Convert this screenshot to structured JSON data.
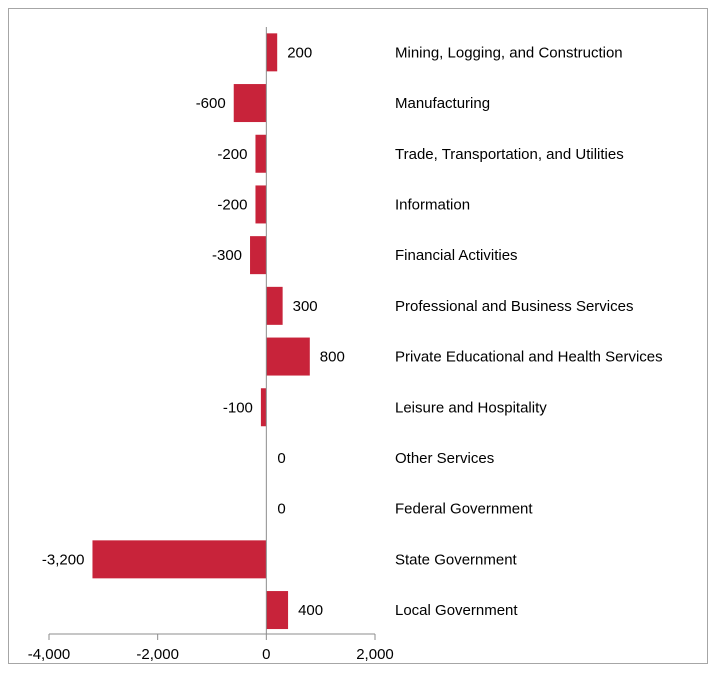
{
  "chart_data": {
    "type": "bar",
    "orientation": "horizontal",
    "categories": [
      "Mining, Logging, and Construction",
      "Manufacturing",
      "Trade, Transportation, and Utilities",
      "Information",
      "Financial Activities",
      "Professional and Business Services",
      "Private Educational and Health Services",
      "Leisure and Hospitality",
      "Other Services",
      "Federal Government",
      "State Government",
      "Local Government"
    ],
    "values": [
      200,
      -600,
      -200,
      -200,
      -300,
      300,
      800,
      -100,
      0,
      0,
      -3200,
      400
    ],
    "data_labels": [
      "200",
      "-600",
      "-200",
      "-200",
      "-300",
      "300",
      "800",
      "-100",
      "0",
      "0",
      "-3,200",
      "400"
    ],
    "x_ticks": [
      -4000,
      -2000,
      0,
      2000
    ],
    "x_tick_labels": [
      "-4,000",
      "-2,000",
      "0",
      "2,000"
    ],
    "xlim": [
      -4000,
      2000
    ],
    "title": "",
    "xlabel": "",
    "ylabel": "",
    "legend": "none",
    "grid": false,
    "colors": {
      "bar": "#c8233a",
      "axis": "#8c8c8c",
      "frame": "#a6a6a6"
    }
  }
}
